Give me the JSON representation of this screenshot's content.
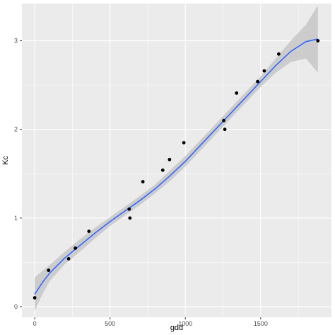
{
  "chart_data": {
    "type": "scatter",
    "title": "",
    "xlabel": "gdd",
    "ylabel": "Kc",
    "xlim": [
      -85,
      1970
    ],
    "ylim": [
      -0.12,
      3.42
    ],
    "x_ticks": [
      0,
      500,
      1000,
      1500
    ],
    "y_ticks": [
      0,
      1,
      2,
      3
    ],
    "grid": true,
    "background": "#ebebeb",
    "grid_color": "#ffffff",
    "point_color": "#000000",
    "smooth_color": "#3366ff",
    "band_color": "#c7c7c7",
    "points": {
      "x": [
        0,
        92,
        225,
        270,
        360,
        627,
        632,
        718,
        850,
        895,
        990,
        1255,
        1262,
        1340,
        1480,
        1524,
        1620,
        1880
      ],
      "y": [
        0.1,
        0.41,
        0.54,
        0.66,
        0.85,
        1.1,
        1.0,
        1.41,
        1.54,
        1.66,
        1.85,
        2.1,
        2.0,
        2.41,
        2.54,
        2.66,
        2.85,
        3.0
      ]
    },
    "smooth": {
      "x": [
        0,
        50,
        100,
        200,
        300,
        400,
        500,
        600,
        700,
        800,
        900,
        1000,
        1100,
        1200,
        1300,
        1400,
        1500,
        1600,
        1700,
        1800,
        1880
      ],
      "y": [
        0.14,
        0.27,
        0.38,
        0.55,
        0.69,
        0.83,
        0.96,
        1.08,
        1.2,
        1.33,
        1.48,
        1.64,
        1.82,
        2.0,
        2.18,
        2.36,
        2.54,
        2.72,
        2.88,
        2.99,
        3.02
      ],
      "lower": [
        -0.05,
        0.14,
        0.29,
        0.48,
        0.62,
        0.77,
        0.91,
        1.03,
        1.15,
        1.28,
        1.42,
        1.58,
        1.76,
        1.94,
        2.12,
        2.3,
        2.48,
        2.64,
        2.76,
        2.8,
        2.64
      ],
      "upper": [
        0.33,
        0.4,
        0.47,
        0.62,
        0.76,
        0.89,
        1.01,
        1.13,
        1.25,
        1.38,
        1.54,
        1.7,
        1.88,
        2.06,
        2.24,
        2.42,
        2.6,
        2.8,
        3.0,
        3.18,
        3.4
      ]
    }
  }
}
